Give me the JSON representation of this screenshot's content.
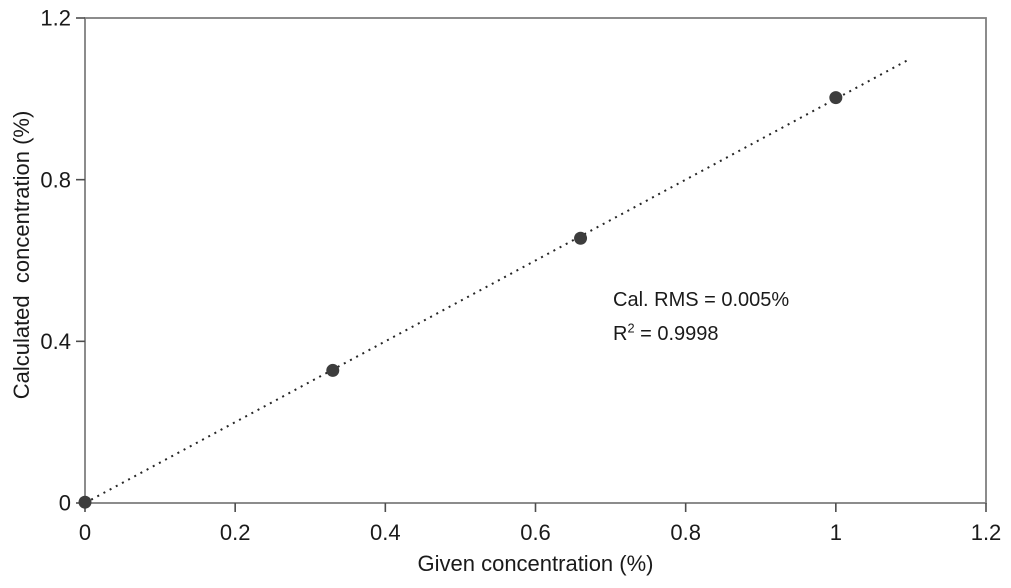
{
  "chart_data": {
    "type": "scatter",
    "title": "",
    "xlabel": "Given concentration (%)",
    "ylabel": "Calculated  concentration (%)",
    "xlim": [
      0,
      1.2
    ],
    "ylim": [
      0,
      1.2
    ],
    "grid": false,
    "legend": false,
    "xticks": [
      {
        "v": 0,
        "label": "0"
      },
      {
        "v": 0.2,
        "label": "0.2"
      },
      {
        "v": 0.4,
        "label": "0.4"
      },
      {
        "v": 0.6,
        "label": "0.6"
      },
      {
        "v": 0.8,
        "label": "0.8"
      },
      {
        "v": 1,
        "label": "1"
      },
      {
        "v": 1.2,
        "label": "1.2"
      }
    ],
    "yticks": [
      {
        "v": 0,
        "label": "0"
      },
      {
        "v": 0.4,
        "label": "0.4"
      },
      {
        "v": 0.8,
        "label": "0.8"
      },
      {
        "v": 1.2,
        "label": "1.2"
      }
    ],
    "series": [
      {
        "name": "calibration-points",
        "marker": "circle",
        "points": [
          {
            "x": 0,
            "y": 0.002
          },
          {
            "x": 0.33,
            "y": 0.328
          },
          {
            "x": 0.66,
            "y": 0.655
          },
          {
            "x": 1.0,
            "y": 1.003
          }
        ]
      }
    ],
    "trendline": {
      "style": "dotted",
      "from": {
        "x": 0,
        "y": 0
      },
      "to": {
        "x": 1.1,
        "y": 1.1
      }
    },
    "annotation": {
      "rms": "Cal. RMS = 0.005%",
      "r2_prefix": "R",
      "r2_sup": "2",
      "r2_suffix": " = 0.9998"
    },
    "colors": {
      "point": "#3d3d3d",
      "trendline": "#262626",
      "axis": "#808080",
      "tick_mark": "#4d4d4d",
      "text": "#1a1a1a"
    }
  }
}
